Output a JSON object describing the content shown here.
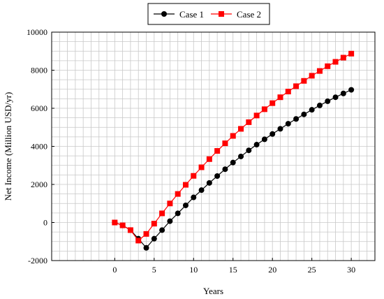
{
  "chart_data": {
    "type": "line",
    "xlabel": "Years",
    "ylabel": "Net Income (Million USD/yr)",
    "xlim": [
      -8,
      33
    ],
    "ylim": [
      -2000,
      10000
    ],
    "x_ticks": [
      0,
      5,
      10,
      15,
      20,
      25,
      30
    ],
    "y_ticks": [
      -2000,
      0,
      2000,
      4000,
      6000,
      8000,
      10000
    ],
    "grid": true,
    "legend_position": "top-center",
    "series": [
      {
        "name": "Case 1",
        "color": "#000000",
        "marker": "circle",
        "x": [
          0,
          1,
          2,
          3,
          4,
          5,
          6,
          7,
          8,
          9,
          10,
          11,
          12,
          13,
          14,
          15,
          16,
          17,
          18,
          19,
          20,
          21,
          22,
          23,
          24,
          25,
          26,
          27,
          28,
          29,
          30
        ],
        "values": [
          0,
          -150,
          -400,
          -850,
          -1330,
          -850,
          -400,
          70,
          480,
          900,
          1320,
          1700,
          2080,
          2440,
          2800,
          3150,
          3470,
          3790,
          4090,
          4370,
          4650,
          4920,
          5190,
          5440,
          5680,
          5920,
          6150,
          6370,
          6580,
          6780,
          6970
        ]
      },
      {
        "name": "Case 2",
        "color": "#ff0000",
        "marker": "square",
        "x": [
          0,
          1,
          2,
          3,
          4,
          5,
          6,
          7,
          8,
          9,
          10,
          11,
          12,
          13,
          14,
          15,
          16,
          17,
          18,
          19,
          20,
          21,
          22,
          23,
          24,
          25,
          26,
          27,
          28,
          29,
          30
        ],
        "values": [
          0,
          -150,
          -400,
          -950,
          -600,
          -60,
          480,
          1000,
          1500,
          1980,
          2450,
          2900,
          3330,
          3760,
          4160,
          4550,
          4920,
          5270,
          5620,
          5950,
          6270,
          6580,
          6880,
          7160,
          7440,
          7710,
          7960,
          8210,
          8440,
          8660,
          8870
        ]
      }
    ]
  }
}
